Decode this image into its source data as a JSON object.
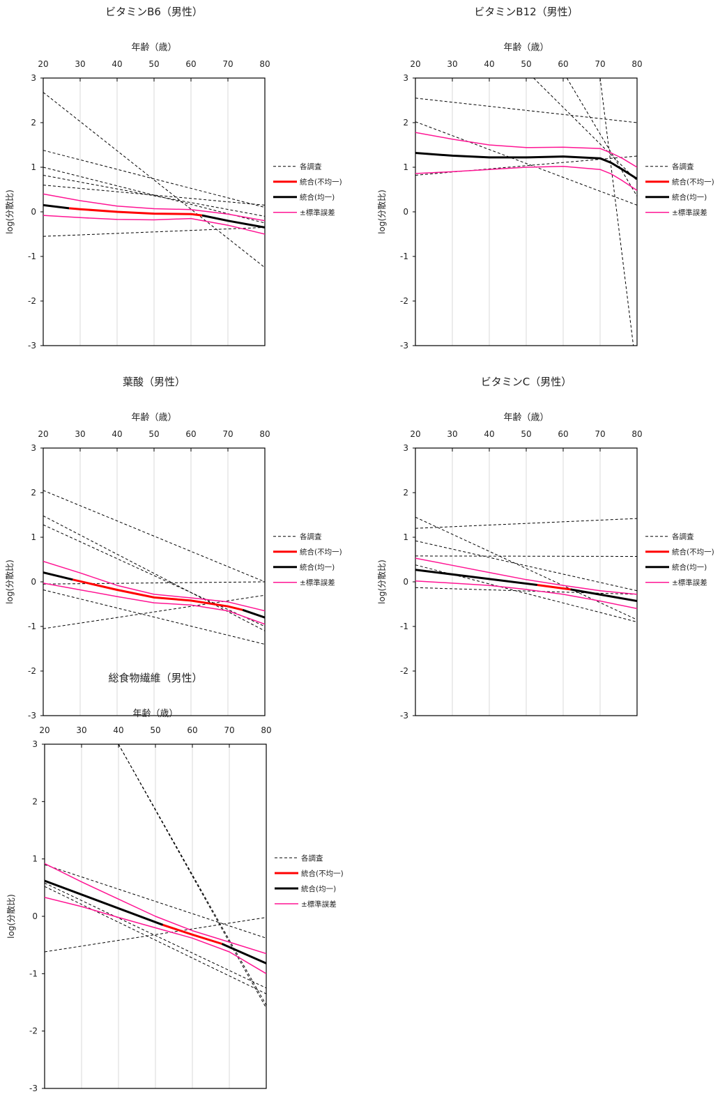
{
  "legend_styles": {
    "study": {
      "color": "#000000",
      "width": 1,
      "dash": "4,3"
    },
    "hetero": {
      "color": "#ff0000",
      "width": 3,
      "dash": ""
    },
    "homo": {
      "color": "#000000",
      "width": 3,
      "dash": ""
    },
    "se": {
      "color": "#ff1493",
      "width": 1.5,
      "dash": ""
    }
  },
  "chart_data": [
    {
      "type": "line",
      "title": "ビタミンB6（男性）",
      "xlabel": "年齢（歳）",
      "ylabel": "log(分散比)",
      "xlim": [
        20,
        80
      ],
      "ylim": [
        -3,
        3
      ],
      "xticks": [
        20,
        30,
        40,
        50,
        60,
        70,
        80
      ],
      "yticks": [
        3,
        2,
        1,
        0,
        -1,
        -2,
        -3
      ],
      "x_axis_position": "top",
      "grid": "vertical",
      "legend": [
        "各調査",
        "統合(不均一)",
        "統合(均一)",
        "±標準誤差"
      ],
      "legend_placement": "right",
      "series": [
        {
          "type": "study",
          "x": [
            20,
            80
          ],
          "y": [
            2.68,
            -1.25
          ]
        },
        {
          "type": "study",
          "x": [
            20,
            80
          ],
          "y": [
            1.38,
            0.1
          ]
        },
        {
          "type": "study",
          "x": [
            20,
            80
          ],
          "y": [
            1.0,
            -0.25
          ]
        },
        {
          "type": "study",
          "x": [
            20,
            80
          ],
          "y": [
            0.82,
            -0.1
          ]
        },
        {
          "type": "study",
          "x": [
            20,
            80
          ],
          "y": [
            0.6,
            0.15
          ]
        },
        {
          "type": "study",
          "x": [
            20,
            80
          ],
          "y": [
            -0.55,
            -0.35
          ]
        },
        {
          "type": "se",
          "x": [
            20,
            30,
            40,
            50,
            60,
            70,
            80
          ],
          "y": [
            0.4,
            0.25,
            0.13,
            0.07,
            0.05,
            -0.05,
            -0.2
          ]
        },
        {
          "type": "se",
          "x": [
            20,
            30,
            40,
            50,
            60,
            70,
            80
          ],
          "y": [
            -0.08,
            -0.13,
            -0.17,
            -0.18,
            -0.15,
            -0.3,
            -0.5
          ]
        },
        {
          "type": "homo",
          "x": [
            20,
            27
          ],
          "y": [
            0.15,
            0.08
          ]
        },
        {
          "type": "hetero",
          "x": [
            27,
            30,
            40,
            50,
            60,
            63
          ],
          "y": [
            0.08,
            0.06,
            0.0,
            -0.04,
            -0.05,
            -0.08
          ]
        },
        {
          "type": "homo",
          "x": [
            63,
            70,
            80
          ],
          "y": [
            -0.08,
            -0.2,
            -0.35
          ]
        }
      ]
    },
    {
      "type": "line",
      "title": "ビタミンB12（男性）",
      "xlabel": "年齢（歳）",
      "ylabel": "log(分散比)",
      "xlim": [
        20,
        80
      ],
      "ylim": [
        -3,
        3
      ],
      "xticks": [
        20,
        30,
        40,
        50,
        60,
        70,
        80
      ],
      "yticks": [
        3,
        2,
        1,
        0,
        -1,
        -2,
        -3
      ],
      "x_axis_position": "top",
      "grid": "vertical",
      "legend": [
        "各調査",
        "統合(不均一)",
        "統合(均一)",
        "±標準誤差"
      ],
      "legend_placement": "right",
      "series": [
        {
          "type": "study",
          "x": [
            20,
            80
          ],
          "y": [
            2.55,
            2.0
          ]
        },
        {
          "type": "study",
          "x": [
            20,
            80
          ],
          "y": [
            2.02,
            0.15
          ]
        },
        {
          "type": "study",
          "x": [
            20,
            80
          ],
          "y": [
            0.82,
            1.25
          ]
        },
        {
          "type": "study",
          "x": [
            52,
            80
          ],
          "y": [
            3.0,
            0.7
          ]
        },
        {
          "type": "study",
          "x": [
            61,
            80
          ],
          "y": [
            3.0,
            0.35
          ]
        },
        {
          "type": "study",
          "x": [
            70,
            79
          ],
          "y": [
            3.0,
            -3.0
          ]
        },
        {
          "type": "se",
          "x": [
            20,
            30,
            40,
            50,
            60,
            70,
            73,
            76,
            80
          ],
          "y": [
            1.78,
            1.63,
            1.5,
            1.44,
            1.45,
            1.42,
            1.32,
            1.2,
            1.0
          ]
        },
        {
          "type": "se",
          "x": [
            20,
            30,
            40,
            50,
            60,
            70,
            73,
            76,
            80
          ],
          "y": [
            0.86,
            0.9,
            0.95,
            1.0,
            1.02,
            0.95,
            0.85,
            0.7,
            0.48
          ]
        },
        {
          "type": "homo",
          "x": [
            20,
            30,
            40,
            50,
            60,
            70,
            73,
            76,
            80
          ],
          "y": [
            1.32,
            1.26,
            1.22,
            1.22,
            1.24,
            1.2,
            1.1,
            0.95,
            0.74
          ]
        }
      ]
    },
    {
      "type": "line",
      "title": "葉酸（男性）",
      "xlabel": "年齢（歳）",
      "ylabel": "log(分散比)",
      "xlim": [
        20,
        80
      ],
      "ylim": [
        -3,
        3
      ],
      "xticks": [
        20,
        30,
        40,
        50,
        60,
        70,
        80
      ],
      "yticks": [
        3,
        2,
        1,
        0,
        -1,
        -2,
        -3
      ],
      "x_axis_position": "top",
      "grid": "vertical",
      "legend": [
        "各調査",
        "統合(不均一)",
        "統合(均一)",
        "±標準誤差"
      ],
      "legend_placement": "right",
      "series": [
        {
          "type": "study",
          "x": [
            20,
            80
          ],
          "y": [
            2.05,
            0.0
          ]
        },
        {
          "type": "study",
          "x": [
            20,
            80
          ],
          "y": [
            1.48,
            -1.1
          ]
        },
        {
          "type": "study",
          "x": [
            20,
            80
          ],
          "y": [
            1.28,
            -1.0
          ]
        },
        {
          "type": "study",
          "x": [
            20,
            80
          ],
          "y": [
            -0.05,
            0.0
          ]
        },
        {
          "type": "study",
          "x": [
            20,
            80
          ],
          "y": [
            -0.18,
            -1.4
          ]
        },
        {
          "type": "study",
          "x": [
            20,
            80
          ],
          "y": [
            -1.05,
            -0.3
          ]
        },
        {
          "type": "se",
          "x": [
            20,
            30,
            40,
            50,
            60,
            70,
            80
          ],
          "y": [
            0.46,
            0.2,
            -0.08,
            -0.28,
            -0.36,
            -0.45,
            -0.65
          ]
        },
        {
          "type": "se",
          "x": [
            20,
            30,
            40,
            50,
            60,
            70,
            80
          ],
          "y": [
            -0.03,
            -0.18,
            -0.33,
            -0.47,
            -0.52,
            -0.65,
            -0.95
          ]
        },
        {
          "type": "homo",
          "x": [
            20,
            28
          ],
          "y": [
            0.21,
            0.05
          ]
        },
        {
          "type": "hetero",
          "x": [
            28,
            40,
            50,
            60,
            70,
            74
          ],
          "y": [
            0.05,
            -0.18,
            -0.35,
            -0.42,
            -0.55,
            -0.63
          ]
        },
        {
          "type": "homo",
          "x": [
            74,
            80
          ],
          "y": [
            -0.63,
            -0.8
          ]
        }
      ]
    },
    {
      "type": "line",
      "title": "ビタミンC（男性）",
      "xlabel": "年齢（歳）",
      "ylabel": "log(分散比)",
      "xlim": [
        20,
        80
      ],
      "ylim": [
        -3,
        3
      ],
      "xticks": [
        20,
        30,
        40,
        50,
        60,
        70,
        80
      ],
      "yticks": [
        3,
        2,
        1,
        0,
        -1,
        -2,
        -3
      ],
      "x_axis_position": "top",
      "grid": "vertical",
      "legend": [
        "各調査",
        "統合(不均一)",
        "統合(均一)",
        "±標準誤差"
      ],
      "legend_placement": "right",
      "series": [
        {
          "type": "study",
          "x": [
            20,
            80
          ],
          "y": [
            1.45,
            -0.85
          ]
        },
        {
          "type": "study",
          "x": [
            20,
            80
          ],
          "y": [
            1.2,
            1.42
          ]
        },
        {
          "type": "study",
          "x": [
            20,
            80
          ],
          "y": [
            0.92,
            -0.2
          ]
        },
        {
          "type": "study",
          "x": [
            20,
            80
          ],
          "y": [
            0.58,
            0.57
          ]
        },
        {
          "type": "study",
          "x": [
            20,
            80
          ],
          "y": [
            0.38,
            -0.9
          ]
        },
        {
          "type": "study",
          "x": [
            20,
            80
          ],
          "y": [
            -0.13,
            -0.28
          ]
        },
        {
          "type": "se",
          "x": [
            20,
            30,
            40,
            50,
            60,
            70,
            80
          ],
          "y": [
            0.53,
            0.37,
            0.21,
            0.05,
            -0.08,
            -0.2,
            -0.28
          ]
        },
        {
          "type": "se",
          "x": [
            20,
            30,
            40,
            50,
            60,
            70,
            80
          ],
          "y": [
            0.02,
            -0.03,
            -0.08,
            -0.17,
            -0.28,
            -0.43,
            -0.6
          ]
        },
        {
          "type": "homo",
          "x": [
            20,
            53
          ],
          "y": [
            0.27,
            -0.07
          ]
        },
        {
          "type": "hetero",
          "x": [
            53,
            62
          ],
          "y": [
            -0.07,
            -0.17
          ]
        },
        {
          "type": "homo",
          "x": [
            62,
            80
          ],
          "y": [
            -0.17,
            -0.43
          ]
        }
      ]
    },
    {
      "type": "line",
      "title": "総食物繊維（男性）",
      "xlabel": "年齢（歳）",
      "ylabel": "log(分散比)",
      "xlim": [
        20,
        80
      ],
      "ylim": [
        -3,
        3
      ],
      "xticks": [
        20,
        30,
        40,
        50,
        60,
        70,
        80
      ],
      "yticks": [
        3,
        2,
        1,
        0,
        -1,
        -2,
        -3
      ],
      "x_axis_position": "top",
      "grid": "vertical",
      "legend": [
        "各調査",
        "統合(不均一)",
        "統合(均一)",
        "±標準誤差"
      ],
      "legend_placement": "right",
      "series": [
        {
          "type": "study",
          "x": [
            40,
            80
          ],
          "y": [
            3.0,
            -1.55
          ]
        },
        {
          "type": "study",
          "x": [
            40,
            80
          ],
          "y": [
            3.0,
            -1.6
          ]
        },
        {
          "type": "study",
          "x": [
            20,
            80
          ],
          "y": [
            0.9,
            -0.38
          ]
        },
        {
          "type": "study",
          "x": [
            20,
            80
          ],
          "y": [
            0.58,
            -1.25
          ]
        },
        {
          "type": "study",
          "x": [
            20,
            80
          ],
          "y": [
            0.52,
            -1.35
          ]
        },
        {
          "type": "study",
          "x": [
            20,
            80
          ],
          "y": [
            -0.62,
            -0.02
          ]
        },
        {
          "type": "se",
          "x": [
            20,
            30,
            40,
            50,
            60,
            70,
            80
          ],
          "y": [
            0.92,
            0.6,
            0.3,
            0.0,
            -0.25,
            -0.45,
            -0.65
          ]
        },
        {
          "type": "se",
          "x": [
            20,
            30,
            40,
            50,
            60,
            70,
            80
          ],
          "y": [
            0.33,
            0.17,
            -0.02,
            -0.2,
            -0.38,
            -0.62,
            -1.0
          ]
        },
        {
          "type": "homo",
          "x": [
            20,
            52
          ],
          "y": [
            0.62,
            -0.15
          ]
        },
        {
          "type": "hetero",
          "x": [
            52,
            60,
            68
          ],
          "y": [
            -0.15,
            -0.32,
            -0.48
          ]
        },
        {
          "type": "homo",
          "x": [
            68,
            80
          ],
          "y": [
            -0.48,
            -0.82
          ]
        }
      ]
    }
  ]
}
